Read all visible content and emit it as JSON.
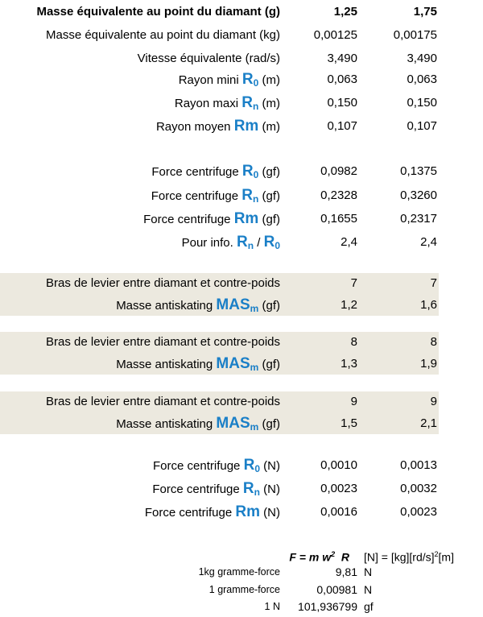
{
  "header": {
    "label": "Masse équivalente au point du diamant (g)",
    "v1": "1,25",
    "v2": "1,75"
  },
  "rows": [
    {
      "label": "Masse équivalente au point du diamant (kg)",
      "v1": "0,00125",
      "v2": "0,00175"
    },
    {
      "label": "Vitesse équivalente (rad/s)",
      "v1": "3,490",
      "v2": "3,490"
    },
    {
      "pre": "Rayon mini",
      "sym": "R",
      "sub": "0",
      "post": "(m)",
      "v1": "0,063",
      "v2": "0,063"
    },
    {
      "pre": "Rayon maxi",
      "sym": "R",
      "sub": "n",
      "post": "(m)",
      "v1": "0,150",
      "v2": "0,150"
    },
    {
      "pre": "Rayon moyen",
      "sym": "Rm",
      "sub": "",
      "post": "(m)",
      "v1": "0,107",
      "v2": "0,107"
    },
    {
      "pre": "Force centrifuge",
      "sym": "R",
      "sub": "0",
      "post": "(gf)",
      "v1": "0,0982",
      "v2": "0,1375"
    },
    {
      "pre": "Force centrifuge",
      "sym": "R",
      "sub": "n",
      "post": "(gf)",
      "v1": "0,2328",
      "v2": "0,3260"
    },
    {
      "pre": "Force centrifuge",
      "sym": "Rm",
      "sub": "",
      "post": "(gf)",
      "v1": "0,1655",
      "v2": "0,2317"
    },
    {
      "pre": "Pour info.",
      "sym": "R",
      "sub": "n",
      "slash": "/",
      "sym2": "R",
      "sub2": "0",
      "v1": "2,4",
      "v2": "2,4"
    }
  ],
  "antiskating": [
    {
      "arm_label": "Bras de levier entre diamant et contre-poids",
      "arm_v1": "7",
      "arm_v2": "7",
      "mas_pre": "Masse antiskating",
      "mas_sym": "MAS",
      "mas_sub": "m",
      "mas_post": "(gf)",
      "mas_v1": "1,2",
      "mas_v2": "1,6"
    },
    {
      "arm_label": "Bras de levier entre diamant et contre-poids",
      "arm_v1": "8",
      "arm_v2": "8",
      "mas_pre": "Masse antiskating",
      "mas_sym": "MAS",
      "mas_sub": "m",
      "mas_post": "(gf)",
      "mas_v1": "1,3",
      "mas_v2": "1,9"
    },
    {
      "arm_label": "Bras de levier entre diamant et contre-poids",
      "arm_v1": "9",
      "arm_v2": "9",
      "mas_pre": "Masse antiskating",
      "mas_sym": "MAS",
      "mas_sub": "m",
      "mas_post": "(gf)",
      "mas_v1": "1,5",
      "mas_v2": "2,1"
    }
  ],
  "newton_rows": [
    {
      "pre": "Force centrifuge",
      "sym": "R",
      "sub": "0",
      "post": "(N)",
      "v1": "0,0010",
      "v2": "0,0013"
    },
    {
      "pre": "Force centrifuge",
      "sym": "R",
      "sub": "n",
      "post": "(N)",
      "v1": "0,0023",
      "v2": "0,0032"
    },
    {
      "pre": "Force centrifuge",
      "sym": "Rm",
      "sub": "",
      "post": "(N)",
      "v1": "0,0016",
      "v2": "0,0023"
    }
  ],
  "formula": {
    "text": "F = m w",
    "exp": "2",
    "tail": "R",
    "units_a": "[N] = [kg][rd/s]",
    "units_exp": "2",
    "units_b": "[m]"
  },
  "conversions": [
    {
      "label": "1kg gramme-force",
      "value": "9,81",
      "unit": "N"
    },
    {
      "label": "1 gramme-force",
      "value": "0,00981",
      "unit": "N"
    },
    {
      "label": "1 N",
      "value": "101,936799",
      "unit": "gf"
    }
  ]
}
